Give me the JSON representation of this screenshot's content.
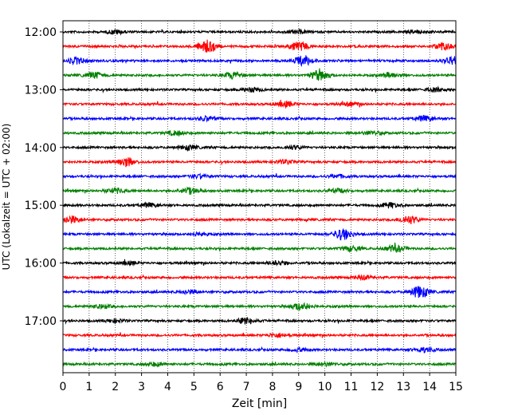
{
  "chart_data": {
    "type": "line",
    "title": "",
    "xlabel": "Zeit  [min]",
    "ylabel": "UTC (Lokalzeit = UTC + 02:00)",
    "xlim": [
      0,
      15
    ],
    "x_ticks": [
      "0",
      "1",
      "2",
      "3",
      "4",
      "5",
      "6",
      "7",
      "8",
      "9",
      "10",
      "11",
      "12",
      "13",
      "14",
      "15"
    ],
    "y_tick_labels": [
      "12:00",
      "13:00",
      "14:00",
      "15:00",
      "16:00",
      "17:00"
    ],
    "grid": "vertical-dotted",
    "legend": "none",
    "trace_colors": [
      "#000000",
      "#ff0000",
      "#0000ff",
      "#008000"
    ],
    "traces": [
      {
        "start": "12:00",
        "color": "#000000",
        "bursts": [
          [
            2,
            0.9
          ],
          [
            9,
            0.8
          ],
          [
            13.5,
            0.7
          ]
        ]
      },
      {
        "start": "12:15",
        "color": "#ff0000",
        "bursts": [
          [
            5.5,
            3.0
          ],
          [
            9,
            2.2
          ],
          [
            14.5,
            1.5
          ]
        ]
      },
      {
        "start": "12:30",
        "color": "#0000ff",
        "bursts": [
          [
            0.5,
            1.5
          ],
          [
            9.2,
            2.5
          ],
          [
            14.9,
            2.0
          ]
        ]
      },
      {
        "start": "12:45",
        "color": "#008000",
        "bursts": [
          [
            1.2,
            1.5
          ],
          [
            6.5,
            1.6
          ],
          [
            9.8,
            2.6
          ],
          [
            12.5,
            1.2
          ]
        ]
      },
      {
        "start": "13:00",
        "color": "#000000",
        "bursts": [
          [
            7.2,
            1.0
          ],
          [
            14.2,
            0.9
          ]
        ]
      },
      {
        "start": "13:15",
        "color": "#ff0000",
        "bursts": [
          [
            8.5,
            1.3
          ],
          [
            11,
            1.0
          ]
        ]
      },
      {
        "start": "13:30",
        "color": "#0000ff",
        "bursts": [
          [
            5.5,
            1.1
          ],
          [
            13.8,
            1.2
          ]
        ]
      },
      {
        "start": "13:45",
        "color": "#008000",
        "bursts": [
          [
            4.3,
            1.0
          ],
          [
            11.8,
            0.9
          ]
        ]
      },
      {
        "start": "14:00",
        "color": "#000000",
        "bursts": [
          [
            4.8,
            0.9
          ],
          [
            8.8,
            0.8
          ]
        ]
      },
      {
        "start": "14:15",
        "color": "#ff0000",
        "bursts": [
          [
            2.4,
            2.2
          ],
          [
            8.5,
            0.9
          ]
        ]
      },
      {
        "start": "14:30",
        "color": "#0000ff",
        "bursts": [
          [
            5.2,
            0.8
          ],
          [
            10.5,
            0.8
          ]
        ]
      },
      {
        "start": "14:45",
        "color": "#008000",
        "bursts": [
          [
            2.0,
            1.2
          ],
          [
            4.8,
            1.5
          ],
          [
            10.5,
            0.9
          ]
        ]
      },
      {
        "start": "15:00",
        "color": "#000000",
        "bursts": [
          [
            3.3,
            0.9
          ],
          [
            12.5,
            1.2
          ]
        ]
      },
      {
        "start": "15:15",
        "color": "#ff0000",
        "bursts": [
          [
            0.3,
            1.8
          ],
          [
            13.2,
            2.0
          ]
        ]
      },
      {
        "start": "15:30",
        "color": "#0000ff",
        "bursts": [
          [
            10.7,
            2.6
          ],
          [
            5.2,
            0.9
          ]
        ]
      },
      {
        "start": "15:45",
        "color": "#008000",
        "bursts": [
          [
            11,
            1.2
          ],
          [
            12.7,
            1.6
          ]
        ]
      },
      {
        "start": "16:00",
        "color": "#000000",
        "bursts": [
          [
            8.2,
            1.1
          ],
          [
            2.5,
            0.8
          ]
        ]
      },
      {
        "start": "16:15",
        "color": "#ff0000",
        "bursts": [
          [
            11.5,
            0.9
          ]
        ]
      },
      {
        "start": "16:30",
        "color": "#0000ff",
        "bursts": [
          [
            13.6,
            2.8
          ],
          [
            4.8,
            0.9
          ]
        ]
      },
      {
        "start": "16:45",
        "color": "#008000",
        "bursts": [
          [
            9.1,
            1.8
          ],
          [
            1.5,
            0.9
          ]
        ]
      },
      {
        "start": "17:00",
        "color": "#000000",
        "bursts": [
          [
            7.0,
            1.4
          ],
          [
            2.0,
            0.8
          ]
        ]
      },
      {
        "start": "17:15",
        "color": "#ff0000",
        "bursts": [
          [
            8.2,
            1.0
          ]
        ]
      },
      {
        "start": "17:30",
        "color": "#0000ff",
        "bursts": [
          [
            13.8,
            1.2
          ],
          [
            9.0,
            0.8
          ]
        ]
      },
      {
        "start": "17:45",
        "color": "#008000",
        "bursts": [
          [
            3.5,
            0.9
          ],
          [
            10.0,
            0.8
          ]
        ]
      }
    ]
  }
}
